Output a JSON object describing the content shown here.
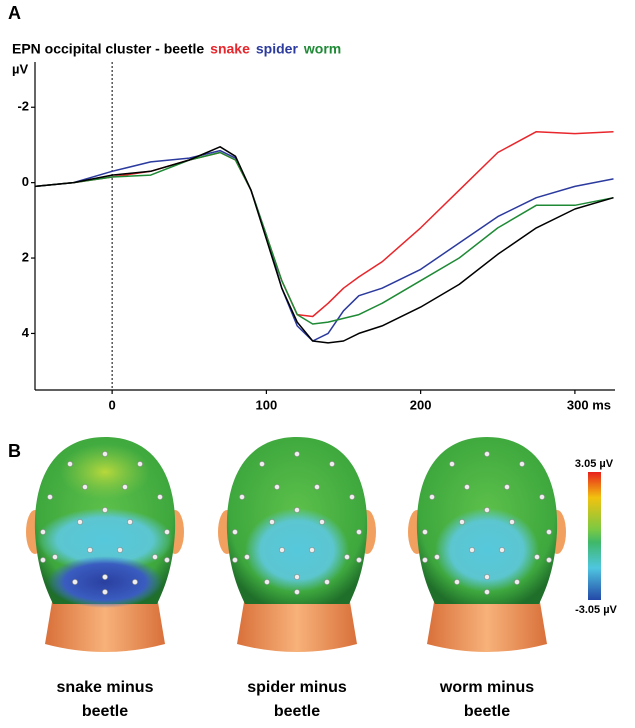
{
  "chart_data": {
    "type": "line",
    "title": "EPN occipital cluster - beetle",
    "ylabel": "µV",
    "y_inverted": true,
    "x": [
      -50,
      -25,
      0,
      25,
      50,
      70,
      80,
      90,
      100,
      110,
      120,
      130,
      140,
      150,
      160,
      175,
      200,
      225,
      250,
      275,
      300,
      325
    ],
    "series": [
      {
        "name": "snake",
        "color": "#e8262b",
        "values": [
          0.1,
          0.0,
          -0.15,
          -0.3,
          -0.6,
          -0.8,
          -0.6,
          0.2,
          1.4,
          2.6,
          3.5,
          3.55,
          3.2,
          2.8,
          2.5,
          2.1,
          1.2,
          0.2,
          -0.8,
          -1.35,
          -1.3,
          -1.35
        ]
      },
      {
        "name": "spider",
        "color": "#2b3a9e",
        "values": [
          0.1,
          0.0,
          -0.3,
          -0.55,
          -0.65,
          -0.85,
          -0.65,
          0.2,
          1.4,
          2.8,
          3.8,
          4.2,
          4.0,
          3.4,
          3.0,
          2.8,
          2.3,
          1.6,
          0.9,
          0.4,
          0.1,
          -0.1
        ]
      },
      {
        "name": "worm",
        "color": "#1e8a35",
        "values": [
          0.1,
          0.0,
          -0.15,
          -0.2,
          -0.6,
          -0.8,
          -0.6,
          0.2,
          1.4,
          2.6,
          3.5,
          3.75,
          3.7,
          3.6,
          3.5,
          3.2,
          2.6,
          2.0,
          1.2,
          0.6,
          0.6,
          0.4
        ]
      },
      {
        "color": "#000000",
        "values": [
          0.1,
          0.0,
          -0.2,
          -0.3,
          -0.6,
          -0.95,
          -0.7,
          0.2,
          1.5,
          2.8,
          3.7,
          4.2,
          4.25,
          4.2,
          4.0,
          3.8,
          3.3,
          2.7,
          1.9,
          1.2,
          0.7,
          0.4
        ]
      }
    ],
    "xlim": [
      -50,
      326
    ],
    "xticks": [
      0,
      100,
      200,
      {
        "value": 300,
        "label": "300 ms"
      }
    ],
    "ylim": [
      5.5,
      -3.2
    ],
    "yticks": [
      -2,
      0,
      2,
      4
    ],
    "marker_x": 0
  },
  "panel_labels": [
    "A",
    "B"
  ],
  "topomaps": {
    "maps": [
      {
        "label": [
          "snake minus",
          "beetle"
        ]
      },
      {
        "label": [
          "spider minus",
          "beetle"
        ]
      },
      {
        "label": [
          "worm minus",
          "beetle"
        ]
      }
    ],
    "colorbar": {
      "max": "3.05 µV",
      "min": "-3.05 µV"
    }
  }
}
